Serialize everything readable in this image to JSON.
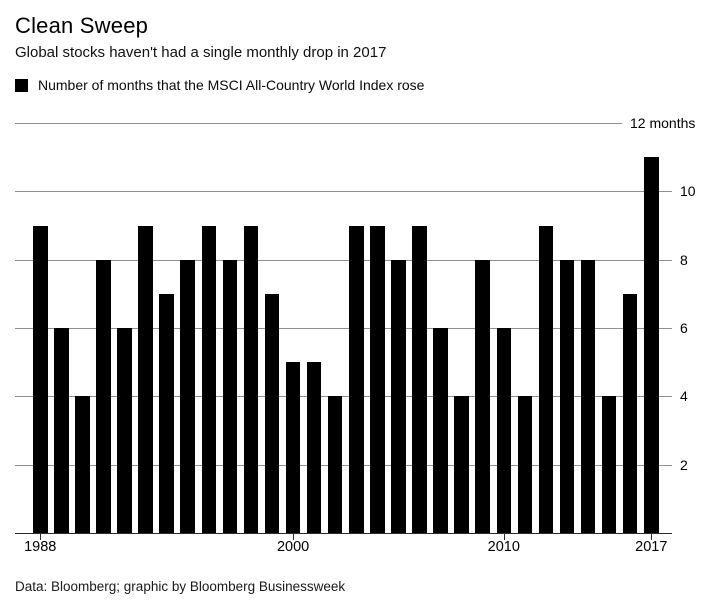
{
  "header": {
    "title": "Clean Sweep",
    "subtitle": "Global stocks haven't had a single monthly drop in 2017",
    "legend": {
      "swatch_color": "#000000",
      "label": "Number of months that the MSCI All-Country World Index rose"
    }
  },
  "chart_data": {
    "type": "bar",
    "title": "Clean Sweep",
    "subtitle": "Global stocks haven't had a single monthly drop in 2017",
    "legend_entry": "Number of months that the MSCI All-Country World Index rose",
    "xlabel": "",
    "ylabel": "months",
    "ylim": [
      0,
      12
    ],
    "bar_color": "#000000",
    "grid_color": "#8f8f8f",
    "grid": "on",
    "legend_position": "top-left",
    "categories": [
      1988,
      1989,
      1990,
      1991,
      1992,
      1993,
      1994,
      1995,
      1996,
      1997,
      1998,
      1999,
      2000,
      2001,
      2002,
      2003,
      2004,
      2005,
      2006,
      2007,
      2008,
      2009,
      2010,
      2011,
      2012,
      2013,
      2014,
      2015,
      2016,
      2017
    ],
    "values": [
      9,
      6,
      4,
      8,
      6,
      9,
      7,
      8,
      9,
      8,
      9,
      7,
      5,
      5,
      4,
      9,
      9,
      8,
      9,
      6,
      4,
      8,
      6,
      4,
      9,
      8,
      8,
      4,
      7,
      11
    ],
    "y_axis": [
      {
        "value": 2,
        "label": "2"
      },
      {
        "value": 4,
        "label": "4"
      },
      {
        "value": 6,
        "label": "6"
      },
      {
        "value": 8,
        "label": "8"
      },
      {
        "value": 10,
        "label": "10"
      },
      {
        "value": 12,
        "label": "12 months"
      }
    ],
    "x_ticks": [
      {
        "year": 1988,
        "label": "1988"
      },
      {
        "year": 2000,
        "label": "2000"
      },
      {
        "year": 2010,
        "label": "2010"
      },
      {
        "year": 2017,
        "label": "2017"
      }
    ]
  },
  "footer": {
    "credit": "Data: Bloomberg; graphic by Bloomberg Businessweek"
  }
}
